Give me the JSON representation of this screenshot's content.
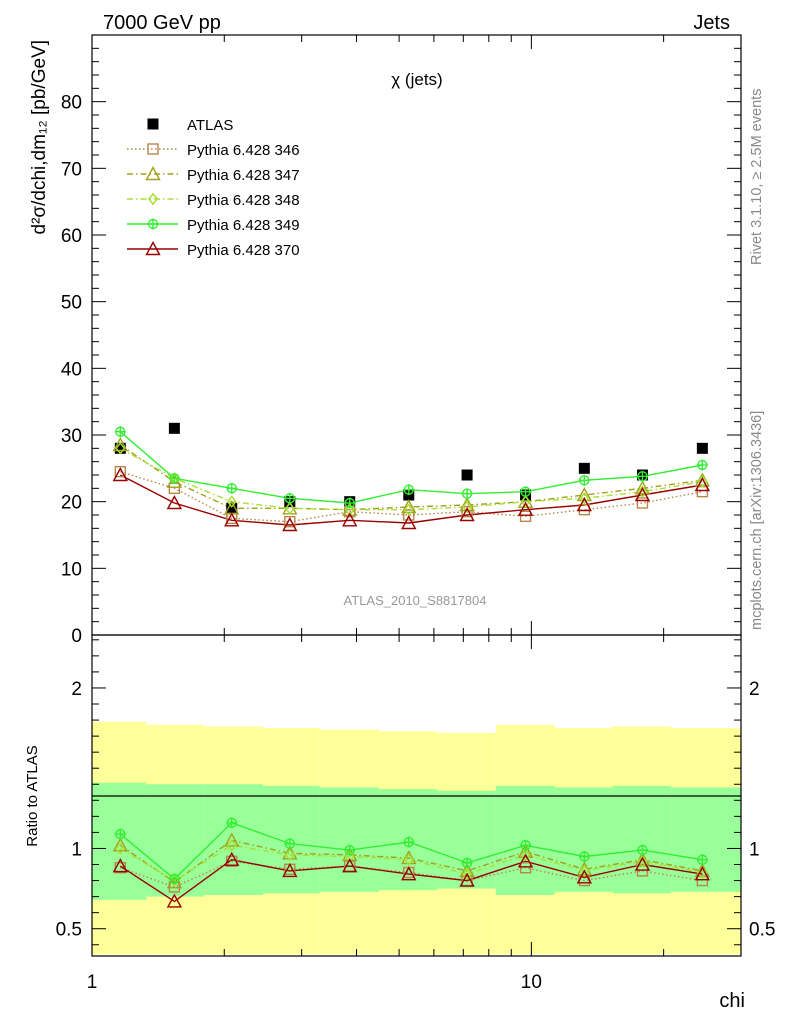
{
  "header": {
    "left": "7000 GeV pp",
    "right": "Jets"
  },
  "side_labels": {
    "rivet": "Rivet 3.1.10, ≥ 2.5M events",
    "mcplots": "mcplots.cern.ch [arXiv:1306.3436]"
  },
  "chart_data": [
    {
      "type": "scatter",
      "title": "χ (jets)",
      "analysis_label": "ATLAS_2010_S8817804",
      "ylabel": "d²σ/dchi,dm₁₂ [pb/GeV]",
      "ylim": [
        0,
        90
      ],
      "y_ticks": [
        0,
        10,
        20,
        30,
        40,
        50,
        60,
        70,
        80
      ],
      "x_scale": "log",
      "xlim": [
        1,
        30
      ],
      "legend_position": "top-left",
      "x": [
        1.16,
        1.54,
        2.08,
        2.82,
        3.86,
        5.26,
        7.14,
        9.7,
        13.2,
        17.9,
        24.5
      ],
      "series": [
        {
          "name": "ATLAS",
          "color": "#000000",
          "marker": "square-filled",
          "line": "none",
          "values": [
            28,
            31,
            19,
            20,
            20,
            21,
            24,
            21,
            25,
            24,
            28
          ]
        },
        {
          "name": "Pythia 6.428 346",
          "color": "#b8864b",
          "marker": "square-open",
          "line": "dotted",
          "values": [
            24.5,
            22.0,
            17.5,
            17.0,
            18.5,
            18.0,
            18.5,
            17.8,
            18.8,
            19.8,
            21.5
          ]
        },
        {
          "name": "Pythia 6.428 347",
          "color": "#a0a020",
          "marker": "triangle-open",
          "line": "dashdot",
          "values": [
            28.5,
            23.0,
            19.0,
            19.0,
            18.8,
            19.2,
            19.5,
            20.0,
            21.0,
            22.0,
            23.2
          ]
        },
        {
          "name": "Pythia 6.428 348",
          "color": "#a8e030",
          "marker": "diamond-open",
          "line": "dashdot",
          "values": [
            28.0,
            23.5,
            20.0,
            19.0,
            18.8,
            18.8,
            19.2,
            20.0,
            20.5,
            21.5,
            23.0
          ]
        },
        {
          "name": "Pythia 6.428 349",
          "color": "#33ee33",
          "marker": "circle-cross",
          "line": "solid",
          "values": [
            30.5,
            23.5,
            22.0,
            20.5,
            19.8,
            21.8,
            21.2,
            21.5,
            23.2,
            23.8,
            25.5
          ]
        },
        {
          "name": "Pythia 6.428 370",
          "color": "#990000",
          "marker": "triangle-open",
          "line": "solid",
          "values": [
            24.0,
            19.8,
            17.2,
            16.5,
            17.2,
            16.8,
            18.0,
            18.8,
            19.5,
            21.0,
            22.5
          ]
        }
      ]
    },
    {
      "type": "scatter",
      "ylabel": "Ratio to ATLAS",
      "xlabel": "chi",
      "ylim": [
        0.33,
        2.33
      ],
      "y_ticks": [
        0.5,
        1,
        2
      ],
      "x_scale": "log",
      "xlim": [
        1,
        30
      ],
      "x_ticks": [
        1,
        10
      ],
      "reference_line": 1,
      "band_edges": [
        1.0,
        1.33,
        1.8,
        2.45,
        3.3,
        4.5,
        6.1,
        8.3,
        11.3,
        15.3,
        20.8,
        30
      ],
      "bands": {
        "outer_yellow": {
          "color": "#ffff99",
          "low": [
            0.34,
            0.34,
            0.34,
            0.34,
            0.34,
            0.34,
            0.34,
            0.34,
            0.34,
            0.34,
            0.34
          ],
          "high": [
            1.79,
            1.77,
            1.76,
            1.75,
            1.74,
            1.73,
            1.72,
            1.77,
            1.75,
            1.76,
            1.75
          ]
        },
        "inner_green": {
          "color": "#99ff99",
          "low": [
            0.68,
            0.7,
            0.71,
            0.72,
            0.73,
            0.74,
            0.75,
            0.71,
            0.73,
            0.72,
            0.73
          ],
          "high": [
            1.41,
            1.4,
            1.4,
            1.39,
            1.38,
            1.37,
            1.36,
            1.39,
            1.38,
            1.39,
            1.38
          ]
        }
      },
      "x": [
        1.16,
        1.54,
        2.08,
        2.82,
        3.86,
        5.26,
        7.14,
        9.7,
        13.2,
        17.9,
        24.5
      ],
      "series": [
        {
          "name": "Pythia 6.428 346",
          "color": "#b8864b",
          "marker": "square-open",
          "line": "dotted",
          "values": [
            0.88,
            0.76,
            0.92,
            0.87,
            0.89,
            0.85,
            0.8,
            0.88,
            0.8,
            0.86,
            0.8
          ]
        },
        {
          "name": "Pythia 6.428 347",
          "color": "#a0a020",
          "marker": "triangle-open",
          "line": "dashdot",
          "values": [
            1.02,
            0.79,
            1.05,
            0.97,
            0.96,
            0.94,
            0.86,
            0.98,
            0.87,
            0.93,
            0.86
          ]
        },
        {
          "name": "Pythia 6.428 348",
          "color": "#a8e030",
          "marker": "diamond-open",
          "line": "dashdot",
          "values": [
            1.0,
            0.8,
            1.02,
            0.96,
            0.95,
            0.93,
            0.84,
            0.96,
            0.86,
            0.92,
            0.85
          ]
        },
        {
          "name": "Pythia 6.428 349",
          "color": "#33ee33",
          "marker": "circle-cross",
          "line": "solid",
          "values": [
            1.09,
            0.81,
            1.16,
            1.03,
            0.99,
            1.04,
            0.91,
            1.02,
            0.95,
            0.99,
            0.93
          ]
        },
        {
          "name": "Pythia 6.428 370",
          "color": "#990000",
          "marker": "triangle-open",
          "line": "solid",
          "values": [
            0.89,
            0.67,
            0.93,
            0.86,
            0.89,
            0.84,
            0.8,
            0.92,
            0.82,
            0.9,
            0.84
          ]
        }
      ]
    }
  ]
}
